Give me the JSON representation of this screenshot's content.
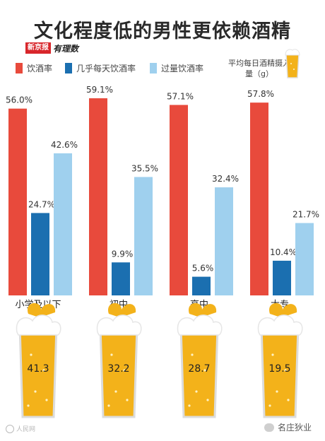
{
  "title": "文化程度低的男性更依赖酒精",
  "source_logo": {
    "box": "新京报",
    "script": "有理数"
  },
  "legend": {
    "items": [
      {
        "label": "饮酒率",
        "color": "#e84a3c"
      },
      {
        "label": "几乎每天饮酒率",
        "color": "#1b6fb0"
      },
      {
        "label": "过量饮酒率",
        "color": "#9fd0ee"
      }
    ],
    "note": "平均每日酒精摄入量（g）"
  },
  "chart_data": {
    "type": "bar",
    "categories": [
      "小学及以下",
      "初中",
      "高中",
      "大专"
    ],
    "series": [
      {
        "name": "饮酒率",
        "values": [
          56.0,
          59.1,
          57.1,
          57.8
        ],
        "labels": [
          "56.0%",
          "59.1%",
          "57.1%",
          "57.8%"
        ],
        "color": "#e84a3c"
      },
      {
        "name": "几乎每天饮酒率",
        "values": [
          24.7,
          9.9,
          5.6,
          10.4
        ],
        "labels": [
          "24.7%",
          "9.9%",
          "5.6%",
          "10.4%"
        ],
        "color": "#1b6fb0"
      },
      {
        "name": "过量饮酒率",
        "values": [
          42.6,
          35.5,
          32.4,
          21.7
        ],
        "labels": [
          "42.6%",
          "35.5%",
          "32.4%",
          "21.7%"
        ],
        "color": "#9fd0ee"
      }
    ],
    "ylim": [
      0,
      60
    ],
    "grid": false,
    "legend_position": "top",
    "alcohol_intake_g": {
      "values": [
        41.3,
        32.2,
        28.7,
        19.5
      ],
      "labels": [
        "41.3",
        "32.2",
        "28.7",
        "19.5"
      ]
    }
  },
  "watermark_left": "人民网",
  "watermark_right": "名庄狄业"
}
